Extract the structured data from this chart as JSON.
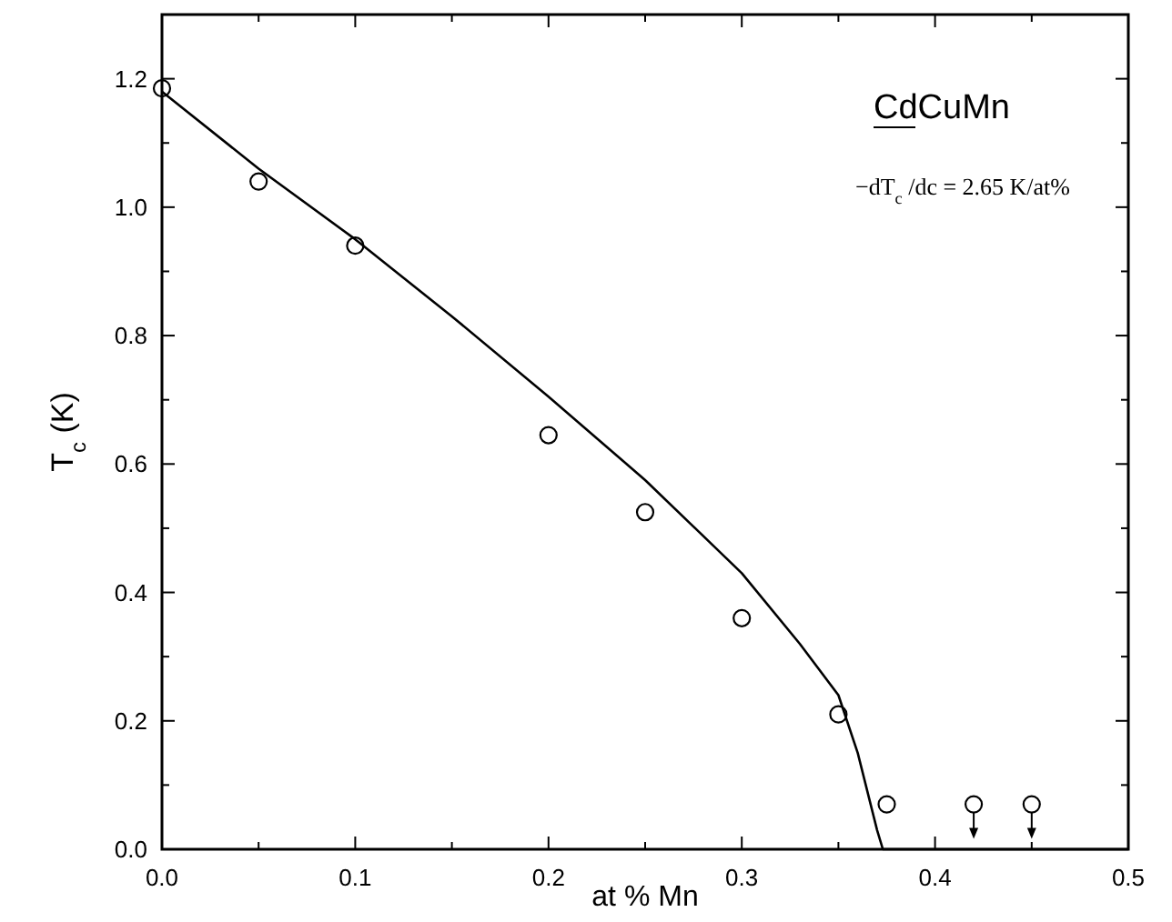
{
  "chart_data": {
    "type": "scatter",
    "xlabel": "at % Mn",
    "ylabel": "T$_{c}$(K)",
    "xlim": [
      0,
      0.5
    ],
    "ylim": [
      0,
      1.3
    ],
    "xticks": [
      {
        "value": 0,
        "label": "0.0"
      },
      {
        "value": 0.05,
        "label": null
      },
      {
        "value": 0.1,
        "label": "0.1"
      },
      {
        "value": 0.15,
        "label": null
      },
      {
        "value": 0.2,
        "label": "0.2"
      },
      {
        "value": 0.25,
        "label": null
      },
      {
        "value": 0.3,
        "label": "0.3"
      },
      {
        "value": 0.35,
        "label": null
      },
      {
        "value": 0.4,
        "label": "0.4"
      },
      {
        "value": 0.45,
        "label": null
      },
      {
        "value": 0.5,
        "label": "0.5"
      }
    ],
    "yticks": [
      {
        "value": 0,
        "label": "0.0"
      },
      {
        "value": 0.1,
        "label": null
      },
      {
        "value": 0.2,
        "label": "0.2"
      },
      {
        "value": 0.3,
        "label": null
      },
      {
        "value": 0.4,
        "label": "0.4"
      },
      {
        "value": 0.5,
        "label": null
      },
      {
        "value": 0.6,
        "label": "0.6"
      },
      {
        "value": 0.7,
        "label": null
      },
      {
        "value": 0.8,
        "label": "0.8"
      },
      {
        "value": 0.9,
        "label": null
      },
      {
        "value": 1.0,
        "label": "1.0"
      },
      {
        "value": 1.1,
        "label": null
      },
      {
        "value": 1.2,
        "label": "1.2"
      }
    ],
    "grid": false,
    "series": [
      {
        "marker": "circle",
        "color": "#000000",
        "x": [
          0,
          0.05,
          0.1,
          0.2,
          0.25,
          0.3,
          0.35,
          0.375,
          0.42,
          0.45
        ],
        "values": [
          1.185,
          1.04,
          0.94,
          0.645,
          0.525,
          0.36,
          0.21,
          0.07,
          0.07,
          0.07
        ]
      },
      {
        "type": "line",
        "marker": "none",
        "line_style": "solid",
        "color": "#000000",
        "x": [
          0,
          0.05,
          0.1,
          0.15,
          0.2,
          0.25,
          0.3,
          0.33,
          0.35,
          0.36,
          0.37,
          0.373,
          0.5
        ],
        "values": [
          1.18,
          1.06,
          0.95,
          0.83,
          0.705,
          0.575,
          0.43,
          0.32,
          0.24,
          0.15,
          0.03,
          0,
          0
        ]
      }
    ],
    "annotations": [
      "CdCuMn",
      "−dT$_{c}$/dc = 2.65 K/at%"
    ]
  }
}
